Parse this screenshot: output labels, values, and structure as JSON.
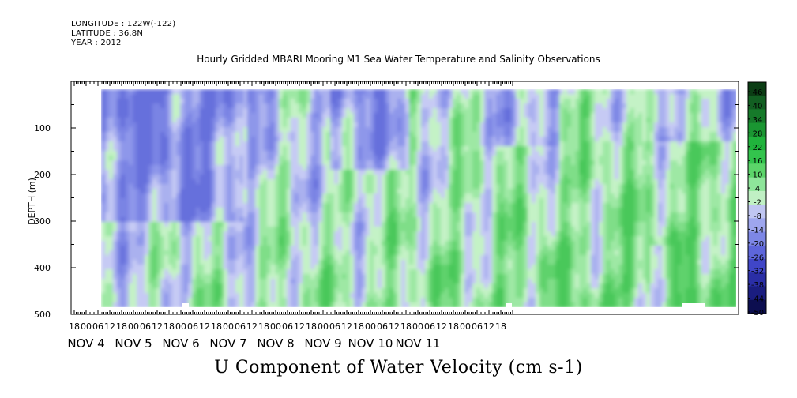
{
  "header": {
    "longitude": "LONGITUDE : 122W(-122)",
    "latitude": "LATITUDE : 36.8N",
    "year": "YEAR : 2012"
  },
  "chart_data": {
    "type": "heatmap",
    "title": "Hourly Gridded MBARI Mooring M1 Sea Water Temperature and Salinity Observations",
    "xlabel": "U Component of Water Velocity (cm s-1)",
    "ylabel": "DEPTH (m)",
    "ylim": [
      500,
      0
    ],
    "y_ticks": [
      100,
      200,
      300,
      400,
      500
    ],
    "x_hour_ticks": [
      "18",
      "00",
      "06",
      "12",
      "18",
      "00",
      "06",
      "12",
      "18",
      "00",
      "06",
      "12",
      "18",
      "00",
      "06",
      "12",
      "18",
      "00",
      "06",
      "12",
      "18",
      "00",
      "06",
      "12",
      "18",
      "00",
      "06",
      "12",
      "18",
      "00",
      "06",
      "12",
      "18",
      "00",
      "06",
      "12",
      "18"
    ],
    "date_labels": [
      "NOV  4",
      "NOV  5",
      "NOV  6",
      "NOV  7",
      "NOV  8",
      "NOV  9",
      "NOV 10",
      "NOV 11"
    ],
    "colorbar_levels": [
      "46",
      "40",
      "34",
      "28",
      "22",
      "16",
      "10",
      "4",
      "-2",
      "-8",
      "-14",
      "-20",
      "-26",
      "-32",
      "-38",
      "-44",
      "-50"
    ],
    "colorbar_colors": [
      "#0b3d14",
      "#125f22",
      "#167a2a",
      "#1a9632",
      "#20b33c",
      "#33c44d",
      "#5cd46a",
      "#8ee59a",
      "#c0f0c4",
      "#c0c6f2",
      "#9ea6ee",
      "#7d87e6",
      "#5e66db",
      "#4046c8",
      "#2a2ea6",
      "#1a1d80",
      "#0c0e50"
    ]
  }
}
